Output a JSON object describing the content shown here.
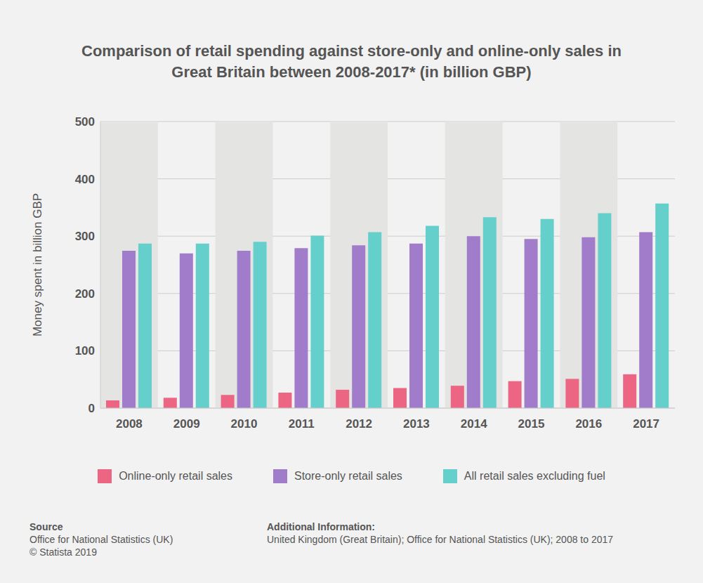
{
  "chart_data": {
    "type": "bar",
    "title": "Comparison of retail spending against store-only and online-only sales in Great Britain between 2008-2017* (in billion GBP)",
    "y_label": "Money spent in billion GBP",
    "categories": [
      "2008",
      "2009",
      "2010",
      "2011",
      "2012",
      "2013",
      "2014",
      "2015",
      "2016",
      "2017"
    ],
    "series": [
      {
        "name": "Online-only retail sales",
        "color": "#ec6583",
        "values": [
          13.5,
          18,
          23,
          27,
          32,
          35,
          39,
          47,
          51,
          59
        ]
      },
      {
        "name": "Store-only retail sales",
        "color": "#a07cca",
        "values": [
          274.5,
          270,
          274.5,
          279,
          284,
          287,
          300,
          295,
          298,
          307
        ]
      },
      {
        "name": "All retail sales excluding fuel",
        "color": "#64cfcb",
        "values": [
          287,
          287,
          290,
          301,
          307,
          318,
          333,
          330,
          340,
          357
        ]
      }
    ],
    "ylim": [
      0,
      500
    ],
    "yticks": [
      0,
      100,
      200,
      300,
      400,
      500
    ],
    "grid": true,
    "legend": "bottom"
  },
  "source": {
    "heading": "Source",
    "lines": [
      "Office for National Statistics (UK)",
      "© Statista 2019"
    ]
  },
  "additional_info": {
    "heading": "Additional Information:",
    "lines": [
      "United Kingdom (Great Britain); Office for National Statistics (UK); 2008 to 2017"
    ]
  }
}
